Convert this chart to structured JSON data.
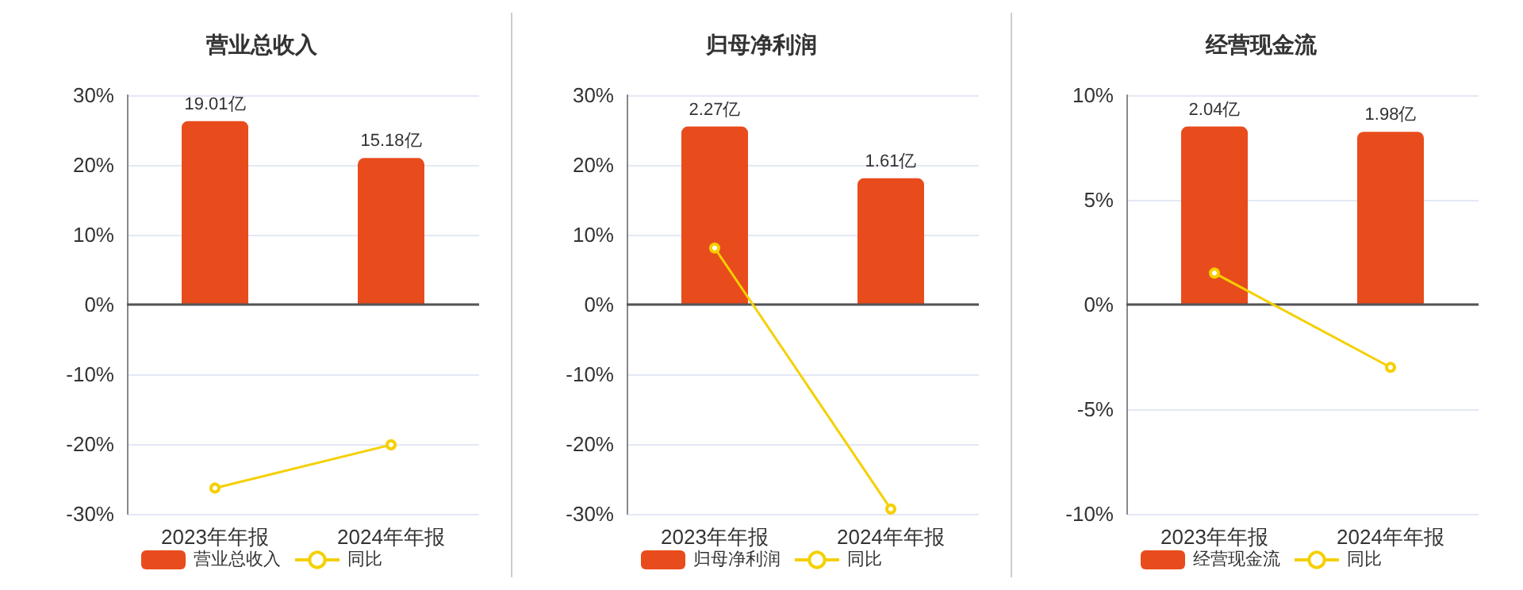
{
  "chart_data": [
    {
      "type": "bar",
      "title": "营业总收入",
      "categories": [
        "2023年年报",
        "2024年年报"
      ],
      "series": [
        {
          "name": "营业总收入",
          "axis": "y2",
          "color": "#e84c1c",
          "values": [
            19.01,
            15.18
          ],
          "value_labels": [
            "19.01亿",
            "15.18亿"
          ]
        },
        {
          "name": "同比",
          "type": "line",
          "color": "#f5d000",
          "values": [
            -26.3,
            -20.1
          ]
        }
      ],
      "ylim": [
        -30,
        30
      ],
      "yticks": [
        {
          "value": -30,
          "label": "-30%"
        },
        {
          "value": -20,
          "label": "-20%"
        },
        {
          "value": -10,
          "label": "-10%"
        },
        {
          "value": 0,
          "label": "0%"
        },
        {
          "value": 10,
          "label": "10%"
        },
        {
          "value": 20,
          "label": "20%"
        },
        {
          "value": 30,
          "label": "30%"
        }
      ],
      "y2lim": [
        -21.7,
        21.7
      ],
      "grid": "y",
      "legend": "bottom",
      "marker": "circle"
    },
    {
      "type": "bar",
      "title": "归母净利润",
      "categories": [
        "2023年年报",
        "2024年年报"
      ],
      "series": [
        {
          "name": "归母净利润",
          "axis": "y2",
          "color": "#e84c1c",
          "values": [
            2.27,
            1.61
          ],
          "value_labels": [
            "2.27亿",
            "1.61亿"
          ]
        },
        {
          "name": "同比",
          "type": "line",
          "color": "#f5d000",
          "values": [
            8.1,
            -29.3
          ]
        }
      ],
      "ylim": [
        -30,
        30
      ],
      "yticks": [
        {
          "value": -30,
          "label": "-30%"
        },
        {
          "value": -20,
          "label": "-20%"
        },
        {
          "value": -10,
          "label": "-10%"
        },
        {
          "value": 0,
          "label": "0%"
        },
        {
          "value": 10,
          "label": "10%"
        },
        {
          "value": 20,
          "label": "20%"
        },
        {
          "value": 30,
          "label": "30%"
        }
      ],
      "y2lim": [
        -2.67,
        2.67
      ],
      "grid": "y",
      "legend": "bottom",
      "marker": "circle"
    },
    {
      "type": "bar",
      "title": "经营现金流",
      "categories": [
        "2023年年报",
        "2024年年报"
      ],
      "series": [
        {
          "name": "经营现金流",
          "axis": "y2",
          "color": "#e84c1c",
          "values": [
            2.04,
            1.98
          ],
          "value_labels": [
            "2.04亿",
            "1.98亿"
          ]
        },
        {
          "name": "同比",
          "type": "line",
          "color": "#f5d000",
          "values": [
            1.5,
            -3.0
          ]
        }
      ],
      "ylim": [
        -10,
        10
      ],
      "yticks": [
        {
          "value": -10,
          "label": "-10%"
        },
        {
          "value": -5,
          "label": "-5%"
        },
        {
          "value": 0,
          "label": "0%"
        },
        {
          "value": 5,
          "label": "5%"
        },
        {
          "value": 10,
          "label": "10%"
        }
      ],
      "y2lim": [
        -2.4,
        2.4
      ],
      "grid": "y",
      "legend": "bottom",
      "marker": "circle"
    }
  ]
}
